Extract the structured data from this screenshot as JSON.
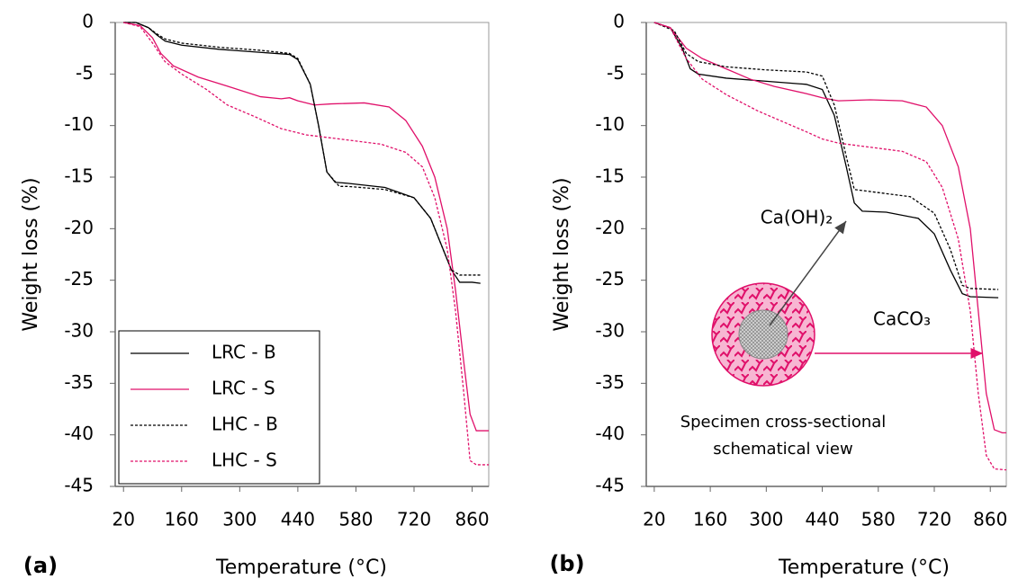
{
  "chart_data": [
    {
      "type": "line",
      "panel_label": "(a)",
      "xlabel": "Temperature (°C)",
      "ylabel": "Weight loss (%)",
      "xlim": [
        0,
        900
      ],
      "xticks": [
        20,
        160,
        300,
        440,
        580,
        720,
        860
      ],
      "ylim": [
        -45,
        0
      ],
      "yticks": [
        0,
        -5,
        -10,
        -15,
        -20,
        -25,
        -30,
        -35,
        -40,
        -45
      ],
      "legend": "lower left",
      "series": [
        {
          "name": "LRC - B",
          "color": "#000000",
          "dashed": false,
          "x": [
            20,
            50,
            80,
            100,
            120,
            160,
            250,
            350,
            420,
            440,
            470,
            490,
            510,
            530,
            560,
            650,
            720,
            760,
            790,
            810,
            830,
            860,
            880
          ],
          "values": [
            0,
            0,
            -0.5,
            -1.2,
            -1.8,
            -2.2,
            -2.6,
            -2.9,
            -3.1,
            -3.6,
            -6,
            -10,
            -14.5,
            -15.5,
            -15.6,
            -16,
            -17,
            -19,
            -22,
            -24,
            -25.2,
            -25.2,
            -25.3
          ]
        },
        {
          "name": "LRC - S",
          "color": "#e0106a",
          "dashed": false,
          "x": [
            20,
            60,
            90,
            110,
            140,
            200,
            280,
            350,
            400,
            420,
            440,
            480,
            520,
            600,
            660,
            700,
            740,
            770,
            800,
            820,
            840,
            855,
            870,
            900
          ],
          "values": [
            0,
            -0.3,
            -1.5,
            -3,
            -4.2,
            -5.3,
            -6.3,
            -7.2,
            -7.4,
            -7.3,
            -7.6,
            -8,
            -7.9,
            -7.8,
            -8.2,
            -9.5,
            -12,
            -15,
            -20,
            -26,
            -33,
            -38,
            -39.6,
            -39.6
          ]
        },
        {
          "name": "LHC - B",
          "color": "#000000",
          "dashed": true,
          "x": [
            20,
            50,
            80,
            100,
            120,
            160,
            250,
            350,
            420,
            440,
            470,
            490,
            510,
            540,
            560,
            650,
            720,
            760,
            790,
            810,
            830,
            860,
            880
          ],
          "values": [
            0,
            0,
            -0.5,
            -1.1,
            -1.6,
            -2,
            -2.4,
            -2.7,
            -3,
            -3.5,
            -6,
            -10,
            -14.5,
            -15.9,
            -15.9,
            -16.2,
            -17,
            -19,
            -22,
            -24,
            -24.5,
            -24.5,
            -24.5
          ]
        },
        {
          "name": "LHC - S",
          "color": "#e0106a",
          "dashed": true,
          "x": [
            20,
            60,
            90,
            120,
            160,
            220,
            270,
            340,
            400,
            460,
            540,
            640,
            700,
            740,
            770,
            800,
            820,
            840,
            855,
            870,
            900
          ],
          "values": [
            0,
            -0.4,
            -2,
            -3.8,
            -5,
            -6.5,
            -8,
            -9.2,
            -10.3,
            -10.9,
            -11.3,
            -11.8,
            -12.6,
            -14,
            -17,
            -22,
            -28,
            -36,
            -42.5,
            -42.9,
            -42.9
          ]
        }
      ]
    },
    {
      "type": "line",
      "panel_label": "(b)",
      "xlabel": "Temperature (°C)",
      "ylabel": "Weight loss (%)",
      "xlim": [
        0,
        900
      ],
      "xticks": [
        20,
        160,
        300,
        440,
        580,
        720,
        860
      ],
      "ylim": [
        -45,
        0
      ],
      "yticks": [
        0,
        -5,
        -10,
        -15,
        -20,
        -25,
        -30,
        -35,
        -40,
        -45
      ],
      "annotations": [
        "Ca(OH)₂",
        "CaCO₃"
      ],
      "caption": [
        "Specimen cross-sectional",
        "schematical view"
      ],
      "series": [
        {
          "color": "#000000",
          "dashed": false,
          "x": [
            20,
            60,
            90,
            110,
            130,
            200,
            300,
            400,
            440,
            470,
            500,
            520,
            540,
            600,
            680,
            720,
            760,
            790,
            810,
            880
          ],
          "values": [
            0,
            -0.5,
            -2.5,
            -4.5,
            -5,
            -5.4,
            -5.7,
            -6,
            -6.5,
            -9,
            -14,
            -17.5,
            -18.3,
            -18.4,
            -19,
            -20.5,
            -24,
            -26.3,
            -26.6,
            -26.7
          ]
        },
        {
          "color": "#e0106a",
          "dashed": false,
          "x": [
            20,
            60,
            100,
            140,
            200,
            260,
            320,
            400,
            440,
            480,
            560,
            640,
            700,
            740,
            780,
            810,
            830,
            850,
            870,
            890,
            900
          ],
          "values": [
            0,
            -0.5,
            -2.5,
            -3.5,
            -4.5,
            -5.5,
            -6.2,
            -6.9,
            -7.3,
            -7.6,
            -7.5,
            -7.6,
            -8.2,
            -10,
            -14,
            -20,
            -28,
            -36,
            -39.5,
            -39.8,
            -39.8
          ]
        },
        {
          "color": "#000000",
          "dashed": true,
          "x": [
            20,
            70,
            100,
            130,
            200,
            300,
            400,
            440,
            470,
            500,
            520,
            560,
            660,
            720,
            760,
            790,
            810,
            880
          ],
          "values": [
            0,
            -0.8,
            -3,
            -3.8,
            -4.3,
            -4.6,
            -4.8,
            -5.2,
            -8,
            -13,
            -16.2,
            -16.4,
            -16.9,
            -18.5,
            -22,
            -25.5,
            -25.8,
            -25.9
          ]
        },
        {
          "color": "#e0106a",
          "dashed": true,
          "x": [
            20,
            60,
            100,
            140,
            200,
            280,
            340,
            400,
            440,
            480,
            560,
            640,
            700,
            740,
            780,
            810,
            830,
            850,
            870,
            900
          ],
          "values": [
            0,
            -0.5,
            -3.5,
            -5.5,
            -7,
            -8.6,
            -9.6,
            -10.6,
            -11.3,
            -11.7,
            -12.1,
            -12.5,
            -13.5,
            -16,
            -21,
            -28,
            -36,
            -42,
            -43.3,
            -43.4
          ]
        }
      ]
    }
  ]
}
